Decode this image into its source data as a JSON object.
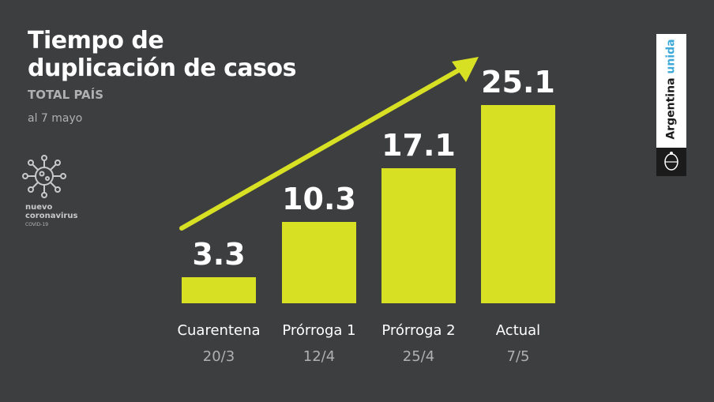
{
  "header": {
    "title_line1": "Tiempo de",
    "title_line2": "duplicación de casos",
    "subtitle": "TOTAL PAÍS",
    "date": "al 7 mayo"
  },
  "logo": {
    "icon": "virus-icon",
    "line1": "nuevo",
    "line2": "coronavirus",
    "line3": "COVID-19"
  },
  "brand": {
    "text_main": "Argentina ",
    "text_accent": "unida",
    "accent_color": "#3fa9d8",
    "seal_icon": "coat-of-arms-icon"
  },
  "colors": {
    "background": "#3d3e40",
    "bar": "#d8e024",
    "arrow": "#d8e024"
  },
  "chart_data": {
    "type": "bar",
    "categories": [
      "Cuarentena",
      "Prórroga 1",
      "Prórroga 2",
      "Actual"
    ],
    "dates": [
      "20/3",
      "12/4",
      "25/4",
      "7/5"
    ],
    "values": [
      3.3,
      10.3,
      17.1,
      25.1
    ],
    "value_labels": [
      "3.3",
      "10.3",
      "17.1",
      "25.1"
    ],
    "title": "",
    "xlabel": "",
    "ylabel": "",
    "ylim": [
      0,
      27
    ],
    "grid": false,
    "legend": "none"
  }
}
